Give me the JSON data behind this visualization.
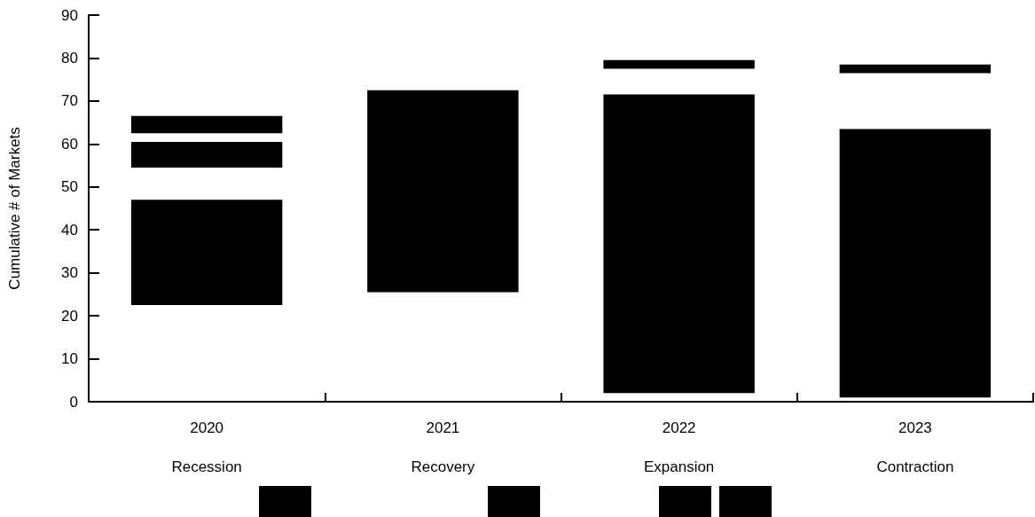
{
  "chart_data": {
    "type": "bar",
    "ylabel": "Cumulative # of Markets",
    "categories": [
      "2020",
      "2021",
      "2022",
      "2023"
    ],
    "annotations": [
      "Recession",
      "Recovery",
      "Expansion",
      "Contraction"
    ],
    "series": [
      {
        "color": "#000000",
        "base": [
          22.5,
          25.5,
          2,
          1
        ],
        "values": [
          24.5,
          47,
          69.5,
          62.5
        ]
      },
      {
        "color": "#000000",
        "base": [
          54.5,
          null,
          77.5,
          76.5
        ],
        "values": [
          6,
          null,
          2,
          2
        ]
      },
      {
        "color": "#000000",
        "base": [
          62.5,
          null,
          null,
          null
        ],
        "values": [
          4,
          null,
          null,
          null
        ]
      }
    ],
    "ylim": [
      0,
      90
    ],
    "yticks": [
      0,
      10,
      20,
      30,
      40,
      50,
      60,
      70,
      80,
      90
    ],
    "grid": false
  }
}
